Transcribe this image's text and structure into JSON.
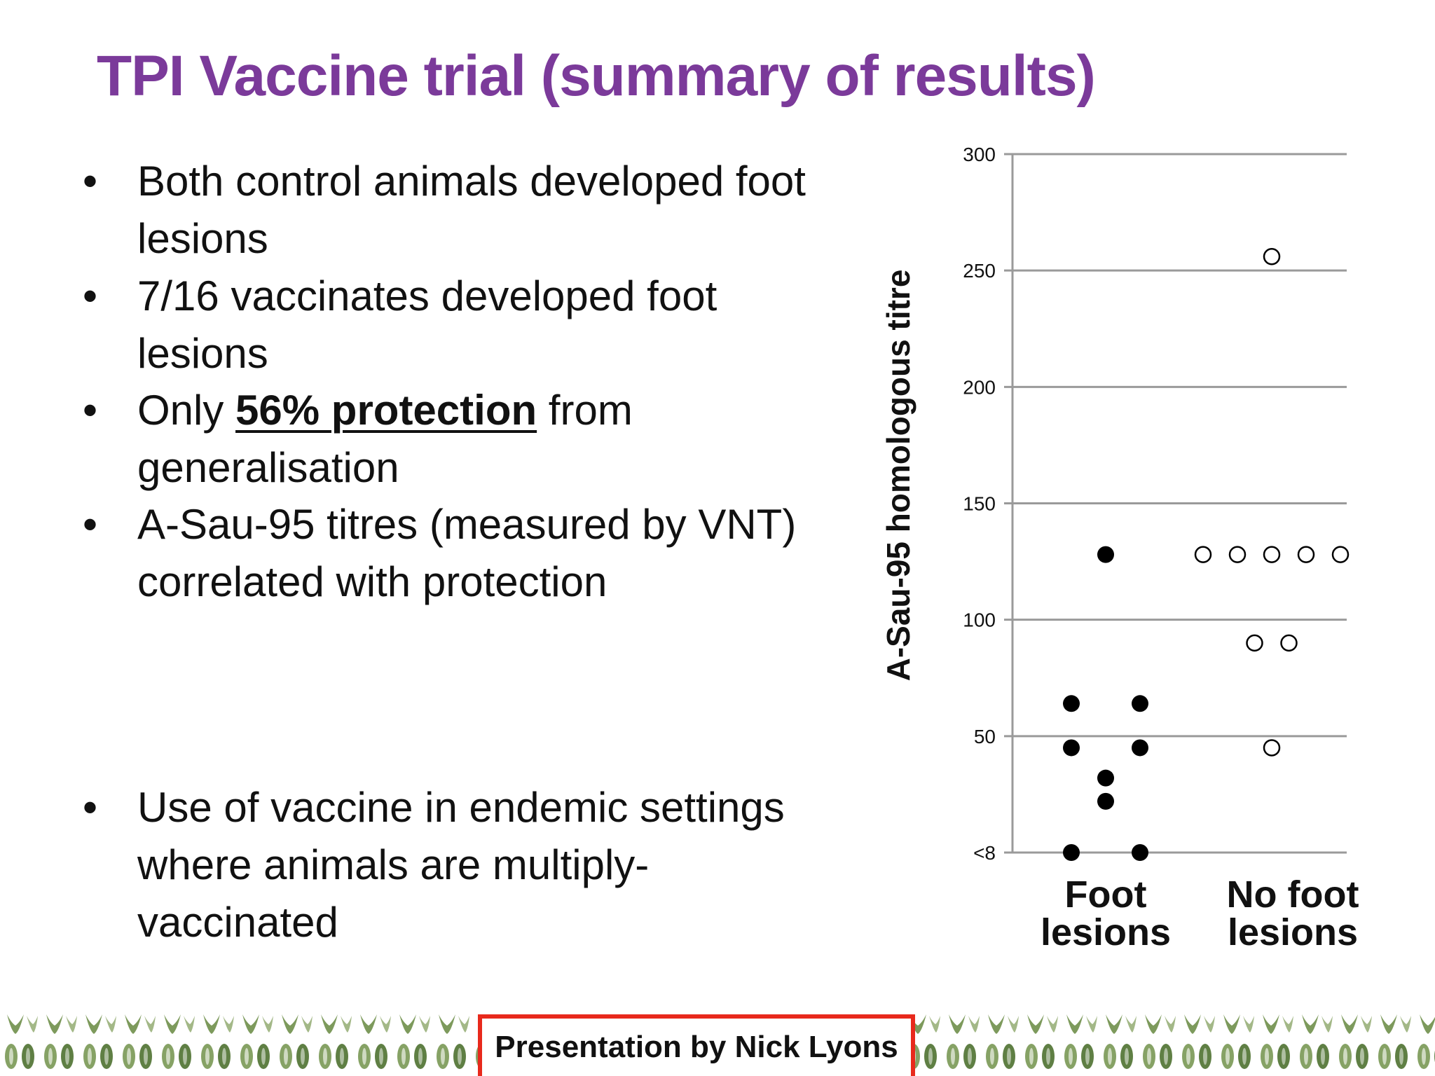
{
  "slide": {
    "title": "TPI Vaccine trial (summary of results)",
    "bullets": [
      {
        "lines": [
          "Both control animals developed foot",
          "lesions"
        ]
      },
      {
        "lines": [
          "7/16 vaccinates developed foot",
          "lesions"
        ]
      },
      {
        "pre": "Only ",
        "emph": "56% protection",
        "post": " from",
        "line2": "generalisation"
      },
      {
        "lines": [
          "A-Sau-95 titres (measured by VNT)",
          "correlated with protection"
        ]
      },
      {
        "lines": [
          "Use of vaccine in endemic settings",
          "where animals are multiply-",
          "vaccinated"
        ]
      }
    ],
    "bullet_symbol": "•",
    "footer": "Presentation by Nick Lyons",
    "colors": {
      "title": "#7b3a9a",
      "footer_border": "#e8291c",
      "leaf_pattern": "#7a9a5a"
    }
  },
  "chart_data": {
    "type": "scatter",
    "ylabel": "A-Sau-95 homologous titre",
    "yticks": [
      "<8",
      "50",
      "100",
      "150",
      "200",
      "250",
      "300"
    ],
    "ylim": [
      0,
      300
    ],
    "categories": [
      "Foot lesions",
      "No foot lesions"
    ],
    "category_label_lines": [
      [
        "Foot",
        "lesions"
      ],
      [
        "No foot",
        "lesions"
      ]
    ],
    "grid": true,
    "series": [
      {
        "category": "Foot lesions",
        "marker": "filled",
        "points": [
          {
            "offset": 0,
            "y": 128
          },
          {
            "offset": -1,
            "y": 64
          },
          {
            "offset": 1,
            "y": 64
          },
          {
            "offset": -1,
            "y": 45
          },
          {
            "offset": 1,
            "y": 45
          },
          {
            "offset": 0,
            "y": 32
          },
          {
            "offset": 0,
            "y": 22
          },
          {
            "offset": -1,
            "y": 0
          },
          {
            "offset": 1,
            "y": 0
          }
        ]
      },
      {
        "category": "No foot lesions",
        "marker": "open",
        "points": [
          {
            "offset": 0,
            "y": 256
          },
          {
            "offset": -2,
            "y": 128
          },
          {
            "offset": -1,
            "y": 128
          },
          {
            "offset": 0,
            "y": 128
          },
          {
            "offset": 1,
            "y": 128
          },
          {
            "offset": 2,
            "y": 128
          },
          {
            "offset": -0.5,
            "y": 90
          },
          {
            "offset": 0.5,
            "y": 90
          },
          {
            "offset": 0,
            "y": 45
          }
        ]
      }
    ]
  }
}
